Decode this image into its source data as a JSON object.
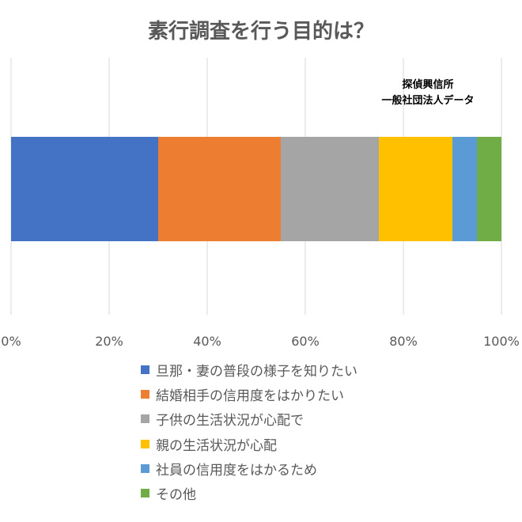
{
  "chart_data": {
    "type": "bar",
    "orientation": "horizontal",
    "stacked": true,
    "title": "素行調査を行う目的は？",
    "annotation": [
      "探偵興信所",
      "一般社団法人データ"
    ],
    "xlim": [
      0,
      1
    ],
    "x_ticks": [
      0,
      0.2,
      0.4,
      0.6,
      0.8,
      1.0
    ],
    "x_tick_labels": [
      "0%",
      "20%",
      "40%",
      "60%",
      "80%",
      "100%"
    ],
    "grid": true,
    "legend_position": "bottom",
    "series": [
      {
        "name": "旦那・妻の普段の様子を知りたい",
        "value": 0.3,
        "color": "#4472C4"
      },
      {
        "name": "結婚相手の信用度をはかりたい",
        "value": 0.25,
        "color": "#ED7D31"
      },
      {
        "name": "子供の生活状況が心配で",
        "value": 0.2,
        "color": "#A5A5A5"
      },
      {
        "name": "親の生活状況が心配",
        "value": 0.15,
        "color": "#FFC000"
      },
      {
        "name": "社員の信用度をはかるため",
        "value": 0.05,
        "color": "#5B9BD5"
      },
      {
        "name": "その他",
        "value": 0.05,
        "color": "#70AD47"
      }
    ]
  }
}
